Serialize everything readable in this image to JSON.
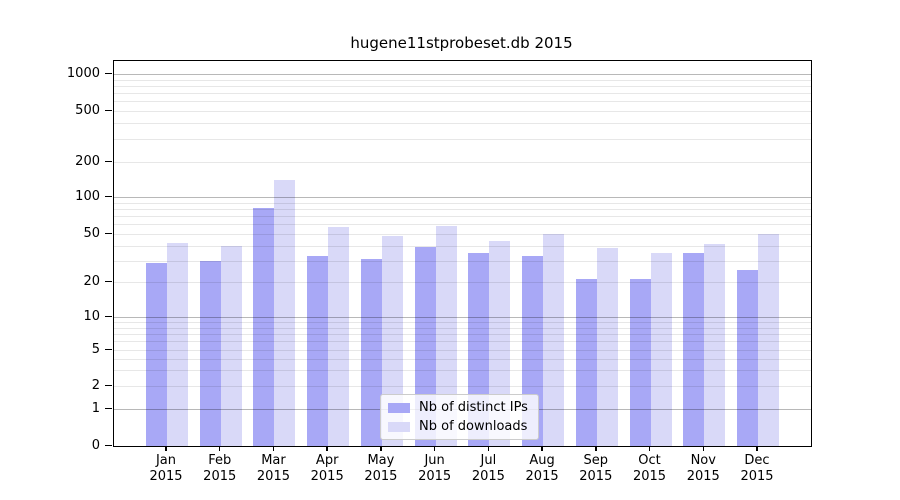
{
  "figure": {
    "title": "hugene11stprobeset.db 2015"
  },
  "chart_data": {
    "type": "bar",
    "title": "hugene11stprobeset.db 2015",
    "categories": [
      "Jan",
      "Feb",
      "Mar",
      "Apr",
      "May",
      "Jun",
      "Jul",
      "Aug",
      "Sep",
      "Oct",
      "Nov",
      "Dec"
    ],
    "x_year": "2015",
    "series": [
      {
        "name": "Nb of distinct IPs",
        "color": "#a8a8f6",
        "values": [
          29,
          30,
          82,
          33,
          31,
          39,
          35,
          33,
          21,
          21,
          35,
          25
        ]
      },
      {
        "name": "Nb of downloads",
        "color": "#d9d9f8",
        "values": [
          42,
          40,
          140,
          57,
          48,
          58,
          44,
          50,
          38,
          35,
          41,
          50
        ]
      }
    ],
    "yscale": "log",
    "y_ticks": [
      0,
      1,
      2,
      5,
      10,
      20,
      50,
      100,
      200,
      500,
      1000
    ],
    "ylim": [
      0,
      1400
    ],
    "grid": "on",
    "legend_position": "lower-center",
    "colors": {
      "bar_distinct_ips": "#a8a8f6",
      "bar_downloads": "#d9d9f8",
      "grid_major": "#b8b8b8",
      "grid_minor": "#e7e7e7",
      "frame": "#000000",
      "legend_border": "#cccccc"
    }
  },
  "legend": {
    "items": [
      {
        "label": "Nb of distinct IPs"
      },
      {
        "label": "Nb of downloads"
      }
    ]
  }
}
